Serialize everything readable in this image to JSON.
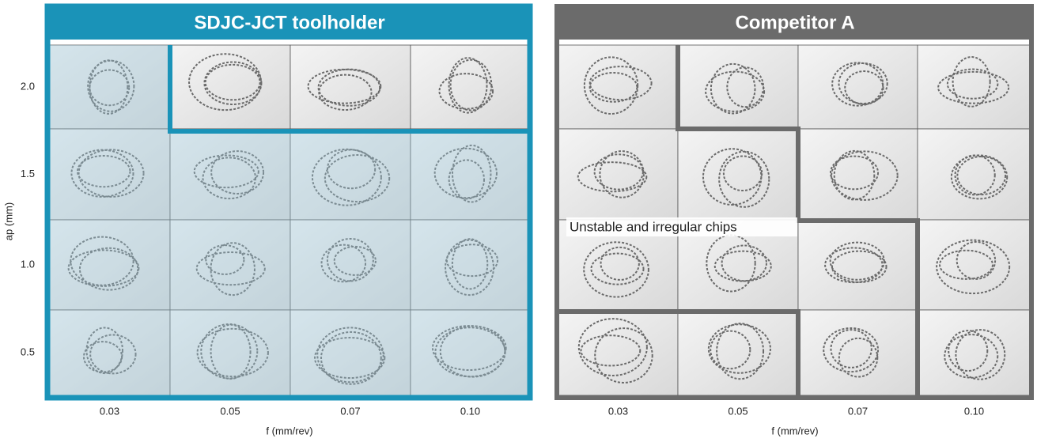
{
  "y_axis": {
    "label": "ap (mm)",
    "ticks": [
      "2.0",
      "1.5",
      "1.0",
      "0.5"
    ]
  },
  "left_panel": {
    "title": "SDJC-JCT toolholder",
    "x_ticks": [
      "0.03",
      "0.05",
      "0.07",
      "0.10"
    ],
    "x_label": "f (mm/rev)"
  },
  "right_panel": {
    "title": "Competitor A",
    "x_ticks": [
      "0.03",
      "0.05",
      "0.07",
      "0.10"
    ],
    "x_label": "f (mm/rev)"
  },
  "annotation": "Unstable and irregular chips"
}
